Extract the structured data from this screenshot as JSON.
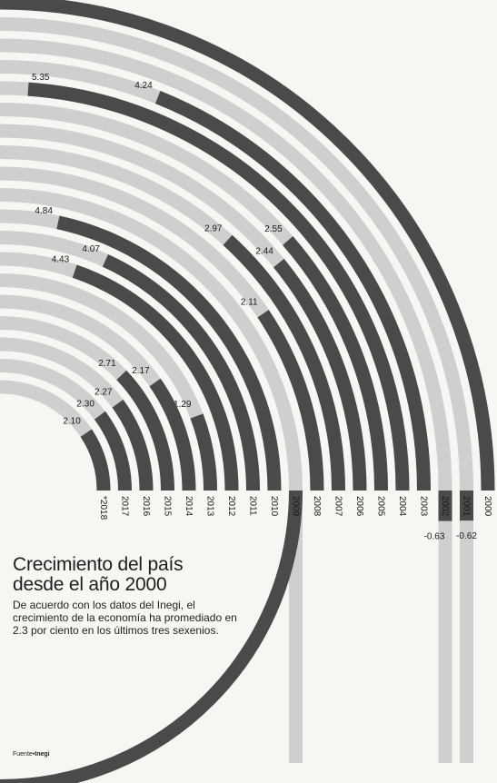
{
  "title_lines": [
    "Crecimiento del país",
    "desde el año 2000"
  ],
  "description": "De acuerdo con los datos del Inegi, el crecimiento de la economía ha promediado en 2.3 por ciento en los últimos tres sexenios.",
  "source_prefix": "Fuente•",
  "source_name": "Inegi",
  "colors": {
    "bar_dark": "#4a4a4a",
    "bar_light": "#cfcfcf",
    "background": "#f7f6f2"
  },
  "chart_data": {
    "type": "radial_bar",
    "title": "Crecimiento del país desde el año 2000",
    "series": [
      {
        "year": "2000",
        "value": 5.6,
        "label": "5.60",
        "year_label": "2000"
      },
      {
        "year": "2001",
        "value": -0.62,
        "label": "-0.62",
        "year_label": "2001"
      },
      {
        "year": "2002",
        "value": -0.63,
        "label": "-0.63",
        "year_label": "2002"
      },
      {
        "year": "2003",
        "value": 4.24,
        "label": "4.24",
        "year_label": "2003"
      },
      {
        "year": "2004",
        "value": 5.35,
        "label": "5.35",
        "year_label": "2004"
      },
      {
        "year": "2005",
        "value": 2.55,
        "label": "2.55",
        "year_label": "2005"
      },
      {
        "year": "2006",
        "value": 2.44,
        "label": "2.44",
        "year_label": "2006"
      },
      {
        "year": "2007",
        "value": 2.97,
        "label": "2.97",
        "year_label": "2007"
      },
      {
        "year": "2008",
        "value": 2.11,
        "label": "2.11",
        "year_label": "2008"
      },
      {
        "year": "2009",
        "value": -5.62,
        "label": "-5.62",
        "year_label": "2009"
      },
      {
        "year": "2010",
        "value": 4.84,
        "label": "4.84",
        "year_label": "2010"
      },
      {
        "year": "2011",
        "value": 4.07,
        "label": "4.07",
        "year_label": "2011"
      },
      {
        "year": "2012",
        "value": 4.43,
        "label": "4.43",
        "year_label": "2012"
      },
      {
        "year": "2013",
        "value": 1.29,
        "label": "1.29",
        "year_label": "2013"
      },
      {
        "year": "2014",
        "value": 2.17,
        "label": "2.17",
        "year_label": "2014"
      },
      {
        "year": "2015",
        "value": 2.71,
        "label": "2.71",
        "year_label": "2015"
      },
      {
        "year": "2016",
        "value": 2.27,
        "label": "2.27",
        "year_label": "2016"
      },
      {
        "year": "2017",
        "value": 2.3,
        "label": "2.30",
        "year_label": "2017"
      },
      {
        "year": "2018",
        "value": 2.1,
        "label": "2.10",
        "year_label": "*2018"
      }
    ],
    "unit": "%",
    "positive_scale_max": 5.6,
    "negative_scale_max": 5.62
  }
}
